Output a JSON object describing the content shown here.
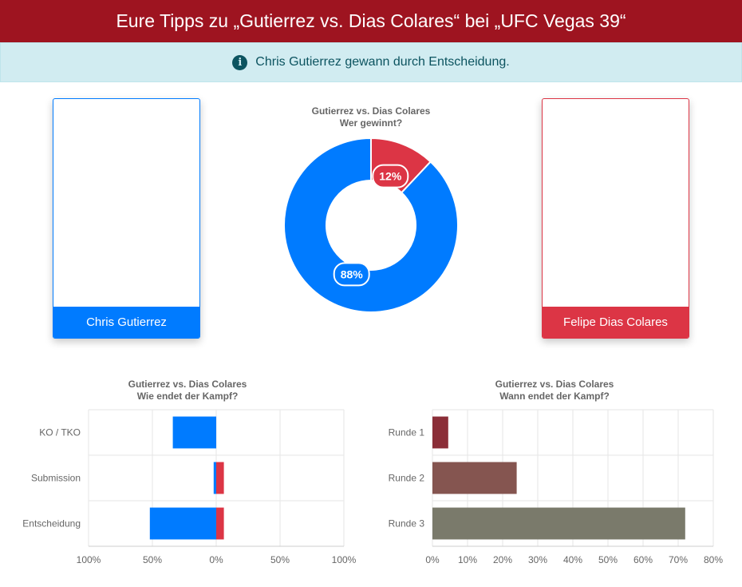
{
  "header": {
    "title": "Eure Tipps zu „Gutierrez vs. Dias Colares“ bei „UFC Vegas 39“"
  },
  "alert": {
    "icon": "info-icon",
    "text": "Chris Gutierrez gewann durch Entscheidung."
  },
  "fighters": {
    "left": {
      "name": "Chris Gutierrez",
      "color": "#007bff"
    },
    "right": {
      "name": "Felipe Dias Colares",
      "color": "#dc3545"
    }
  },
  "chart_data": [
    {
      "type": "pie",
      "title": "Gutierrez vs. Dias Colares",
      "subtitle": "Wer gewinnt?",
      "categories": [
        "Felipe Dias Colares",
        "Chris Gutierrez"
      ],
      "values": [
        12,
        88
      ],
      "labels": [
        "12%",
        "88%"
      ],
      "colors": [
        "#dc3545",
        "#007bff"
      ]
    },
    {
      "type": "bar",
      "orientation": "horizontal-diverging",
      "title": "Gutierrez vs. Dias Colares",
      "subtitle": "Wie endet der Kampf?",
      "categories": [
        "KO / TKO",
        "Submission",
        "Entscheidung"
      ],
      "series": [
        {
          "values": [
            -34,
            -2,
            -52
          ],
          "color": "#007bff"
        },
        {
          "values": [
            0,
            6,
            6
          ],
          "color": "#dc3545"
        }
      ],
      "xlim": [
        -100,
        100
      ],
      "xticks": [
        "100%",
        "50%",
        "0%",
        "50%",
        "100%"
      ]
    },
    {
      "type": "bar",
      "orientation": "horizontal",
      "title": "Gutierrez vs. Dias Colares",
      "subtitle": "Wann endet der Kampf?",
      "categories": [
        "Runde 1",
        "Runde 2",
        "Runde 3"
      ],
      "values": [
        4.5,
        24,
        72
      ],
      "colors": [
        "#8b2e38",
        "#855550",
        "#7a7a6b"
      ],
      "xlim": [
        0,
        80
      ],
      "xticks": [
        "0%",
        "10%",
        "20%",
        "30%",
        "40%",
        "50%",
        "60%",
        "70%",
        "80%"
      ]
    }
  ]
}
